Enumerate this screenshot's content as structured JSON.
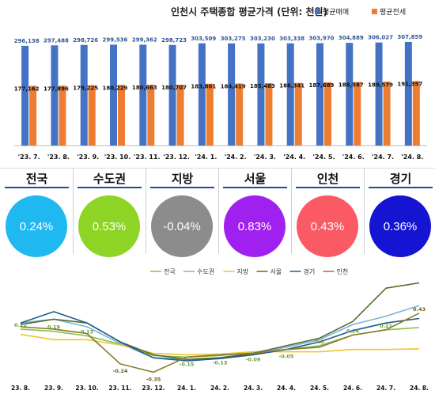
{
  "chart_data": [
    {
      "type": "bar",
      "title": "인천시 주택종합 평균가격 (단위: 천원)",
      "categories": [
        "'23. 7.",
        "'23. 8.",
        "'23. 9.",
        "'23. 10.",
        "'23. 11.",
        "'23. 12.",
        "'24. 1.",
        "'24. 2.",
        "'24. 3.",
        "'24. 4.",
        "'24. 5.",
        "'24. 6.",
        "'24. 7.",
        "'24. 8."
      ],
      "series": [
        {
          "name": "평균매매",
          "color": "#4472c4",
          "values": [
            296138,
            297488,
            298726,
            299536,
            299362,
            298723,
            303509,
            303275,
            303230,
            303338,
            303970,
            304889,
            306027,
            307859
          ]
        },
        {
          "name": "평균전세",
          "color": "#ed7d31",
          "values": [
            177162,
            177896,
            179225,
            180229,
            180663,
            180707,
            183801,
            184419,
            185483,
            186341,
            187689,
            188587,
            189579,
            191357
          ]
        }
      ],
      "labels_sale": [
        "296,138",
        "297,488",
        "298,726",
        "299,536",
        "299,362",
        "298,723",
        "303,509",
        "303,275",
        "303,230",
        "303,338",
        "303,970",
        "304,889",
        "306,027",
        "307,859"
      ],
      "labels_jeonse": [
        "177,162",
        "177,896",
        "179,225",
        "180,229",
        "180,663",
        "180,707",
        "183,801",
        "184,419",
        "185,483",
        "186,341",
        "187,689",
        "188,587",
        "189,579",
        "191,357"
      ],
      "legend_position": "top-right",
      "grid": false
    },
    {
      "type": "line",
      "categories": [
        "23. 8.",
        "23. 9.",
        "23. 10.",
        "23. 11.",
        "23. 12.",
        "24. 1.",
        "24. 2.",
        "24. 3.",
        "24. 4.",
        "24. 5.",
        "24. 6.",
        "24. 7.",
        "24. 8."
      ],
      "series": [
        {
          "name": "전국",
          "color": "#8cbf4a",
          "values": [
            0.22,
            0.19,
            0.13,
            0.02,
            -0.13,
            -0.15,
            -0.13,
            -0.09,
            -0.05,
            0.0,
            0.14,
            0.21,
            0.24
          ]
        },
        {
          "name": "수도권",
          "color": "#7ab3d9",
          "values": [
            0.3,
            0.35,
            0.25,
            0.03,
            -0.16,
            -0.18,
            -0.16,
            -0.11,
            -0.02,
            0.08,
            0.28,
            0.39,
            0.53
          ]
        },
        {
          "name": "지방",
          "color": "#f2c330",
          "values": [
            0.15,
            0.08,
            0.08,
            0.01,
            -0.1,
            -0.12,
            -0.11,
            -0.08,
            -0.08,
            -0.08,
            -0.05,
            -0.05,
            -0.04
          ]
        },
        {
          "name": "서울",
          "color": "#5a6b2e",
          "values": [
            0.28,
            0.35,
            0.3,
            0.05,
            -0.12,
            -0.18,
            -0.16,
            -0.1,
            0.0,
            0.1,
            0.32,
            0.76,
            0.83
          ]
        },
        {
          "name": "경기",
          "color": "#1f5c8c",
          "values": [
            0.3,
            0.45,
            0.3,
            0.05,
            -0.16,
            -0.2,
            -0.17,
            -0.12,
            -0.05,
            0.05,
            0.2,
            0.3,
            0.36
          ]
        },
        {
          "name": "인천",
          "color": "#8b7a2b",
          "values": [
            0.25,
            0.22,
            0.16,
            -0.24,
            -0.35,
            -0.15,
            -0.12,
            -0.1,
            -0.05,
            -0.02,
            0.14,
            0.21,
            0.43
          ]
        }
      ],
      "point_labels": [
        {
          "series": 0,
          "index": 0,
          "text": "0.22"
        },
        {
          "series": 0,
          "index": 1,
          "text": "0.19"
        },
        {
          "series": 0,
          "index": 2,
          "text": "0.13"
        },
        {
          "series": 5,
          "index": 3,
          "text": "-0.24"
        },
        {
          "series": 5,
          "index": 4,
          "text": "-0.35"
        },
        {
          "series": 0,
          "index": 5,
          "text": "-0.15"
        },
        {
          "series": 0,
          "index": 6,
          "text": "-0.13"
        },
        {
          "series": 0,
          "index": 7,
          "text": "-0.09"
        },
        {
          "series": 0,
          "index": 8,
          "text": "-0.05"
        },
        {
          "series": 0,
          "index": 9,
          "text": "0.0"
        },
        {
          "series": 0,
          "index": 10,
          "text": "0.14"
        },
        {
          "series": 0,
          "index": 11,
          "text": "0.21"
        },
        {
          "series": 5,
          "index": 12,
          "text": "0.43"
        }
      ],
      "ylim": [
        -0.45,
        0.95
      ],
      "legend_position": "top-center",
      "grid": false
    }
  ],
  "regions": [
    {
      "name": "전국",
      "value": "0.24%",
      "color": "#20b8f0"
    },
    {
      "name": "수도권",
      "value": "0.53%",
      "color": "#8ed424"
    },
    {
      "name": "지방",
      "value": "-0.04%",
      "color": "#8c8c8c"
    },
    {
      "name": "서울",
      "value": "0.83%",
      "color": "#a020f0"
    },
    {
      "name": "인천",
      "value": "0.43%",
      "color": "#fa5a64"
    },
    {
      "name": "경기",
      "value": "0.36%",
      "color": "#1414d2"
    }
  ]
}
